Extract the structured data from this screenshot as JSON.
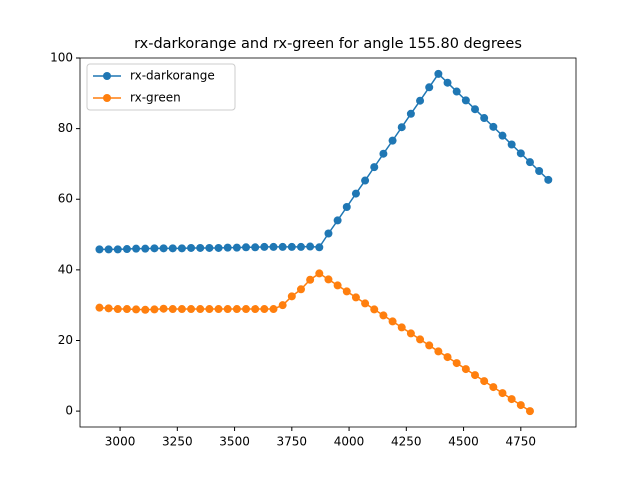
{
  "chart_data": {
    "type": "line",
    "title": "rx-darkorange and rx-green for angle 155.80 degrees",
    "series": [
      {
        "name": "rx-darkorange",
        "color": "#1f77b4",
        "x": [
          2910,
          2950,
          2990,
          3030,
          3070,
          3110,
          3150,
          3190,
          3230,
          3270,
          3310,
          3350,
          3390,
          3430,
          3470,
          3510,
          3550,
          3590,
          3630,
          3670,
          3710,
          3750,
          3790,
          3830,
          3870,
          3910,
          3950,
          3990,
          4030,
          4070,
          4110,
          4150,
          4190,
          4230,
          4270,
          4310,
          4350,
          4390,
          4430,
          4470,
          4510,
          4550,
          4590,
          4630,
          4670,
          4710,
          4750,
          4790,
          4830,
          4870
        ],
        "values": [
          45.8,
          45.8,
          45.8,
          45.9,
          46,
          46,
          46.1,
          46.1,
          46.1,
          46.1,
          46.2,
          46.2,
          46.2,
          46.2,
          46.3,
          46.3,
          46.4,
          46.4,
          46.5,
          46.5,
          46.5,
          46.5,
          46.5,
          46.6,
          46.4,
          50.3,
          54,
          57.8,
          61.6,
          65.3,
          69.1,
          72.9,
          76.6,
          80.4,
          84.2,
          87.9,
          91.7,
          95.5,
          93,
          90.5,
          88,
          85.5,
          83,
          80.5,
          78,
          75.5,
          73,
          70.5,
          68,
          65.5
        ]
      },
      {
        "name": "rx-green",
        "color": "#ff7f0e",
        "x": [
          2910,
          2950,
          2990,
          3030,
          3070,
          3110,
          3150,
          3190,
          3230,
          3270,
          3310,
          3350,
          3390,
          3430,
          3470,
          3510,
          3550,
          3590,
          3630,
          3670,
          3710,
          3750,
          3790,
          3830,
          3870,
          3910,
          3950,
          3990,
          4030,
          4070,
          4110,
          4150,
          4190,
          4230,
          4270,
          4310,
          4350,
          4390,
          4430,
          4470,
          4510,
          4550,
          4590,
          4630,
          4670,
          4710,
          4750,
          4790
        ],
        "values": [
          29.3,
          29.1,
          28.9,
          28.9,
          28.8,
          28.7,
          28.8,
          29,
          28.9,
          28.9,
          28.9,
          28.9,
          28.9,
          28.9,
          28.9,
          28.9,
          28.9,
          28.9,
          28.9,
          28.9,
          30,
          32.5,
          34.5,
          37.2,
          39,
          37.3,
          35.6,
          33.9,
          32.2,
          30.5,
          28.8,
          27.1,
          25.4,
          23.7,
          22,
          20.3,
          18.6,
          16.9,
          15.3,
          13.6,
          11.9,
          10.2,
          8.5,
          6.8,
          5.1,
          3.4,
          1.7,
          0
        ]
      }
    ],
    "xlim": [
      2825,
      4991
    ],
    "xticks": [
      3000,
      3250,
      3500,
      3750,
      4000,
      4250,
      4500,
      4750
    ],
    "ylim": [
      -4.5,
      100
    ],
    "yticks": [
      0,
      20,
      40,
      60,
      80,
      100
    ],
    "legend": "upper left"
  }
}
